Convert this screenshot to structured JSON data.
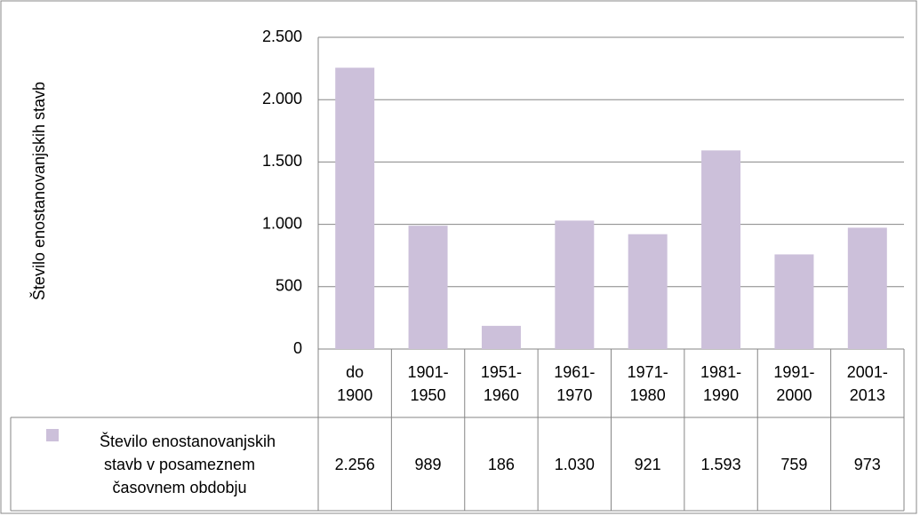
{
  "chart_data": {
    "type": "bar",
    "y_axis_label": "Število enostanovanjskih stavb",
    "categories": [
      "do 1900",
      "1901-1950",
      "1951-1960",
      "1961-1970",
      "1971-1980",
      "1981-1990",
      "1991-2000",
      "2001-2013"
    ],
    "series": [
      {
        "name": "Število enostanovanjskih stavb v posameznem časovnem obdobju",
        "color": "#ccc0da",
        "values": [
          2256,
          989,
          186,
          1030,
          921,
          1593,
          759,
          973
        ],
        "value_labels": [
          "2.256",
          "989",
          "186",
          "1.030",
          "921",
          "1.593",
          "759",
          "973"
        ]
      }
    ],
    "ylim": [
      0,
      2500
    ],
    "yticks": [
      0,
      500,
      {
        "value": 1000,
        "label": "1.000"
      },
      {
        "value": 1500,
        "label": "1.500"
      },
      {
        "value": 2000,
        "label": "2.000"
      },
      {
        "value": 2500,
        "label": "2.500"
      }
    ],
    "grid": true,
    "data_table": true
  }
}
